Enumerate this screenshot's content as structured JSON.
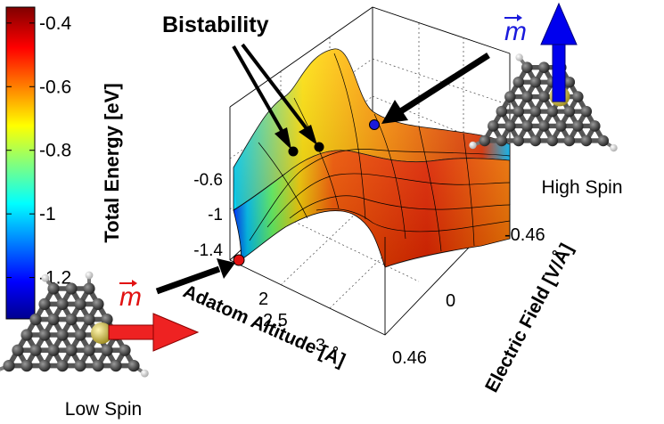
{
  "colorbar": {
    "title": "Total Energy [eV]",
    "ticks": [
      "-0.4",
      "-0.6",
      "-0.8",
      "-1",
      "-1.2"
    ],
    "tick_values": [
      -0.4,
      -0.6,
      -0.8,
      -1.0,
      -1.2
    ],
    "range": [
      -1.33,
      -0.35
    ]
  },
  "annotations": {
    "bistability": "Bistability",
    "moment_symbol": "m",
    "high_spin": "High Spin",
    "low_spin": "Low Spin"
  },
  "axes": {
    "z_ticks": [
      "-0.6",
      "-1",
      "-1.4"
    ],
    "altitude_label": "Adatom Altitude [Å]",
    "altitude_ticks": [
      "2",
      "2.5",
      "3"
    ],
    "field_label": "Electric Field [V/Å]",
    "field_ticks": [
      "-0.46",
      "0",
      "0.46"
    ]
  },
  "colors": {
    "high_spin_point": "#1a1adc",
    "low_spin_point": "#e11111",
    "bistable_point": "#000000",
    "adatom": "#c9b64a",
    "carbon_atom": "#3a3a3a",
    "hydrogen_atom": "#e6e6e6"
  }
}
